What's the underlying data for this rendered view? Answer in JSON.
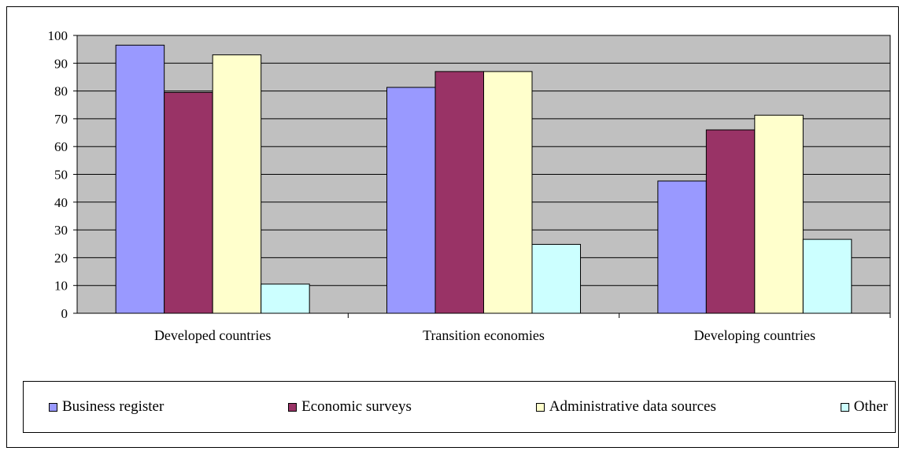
{
  "chart_data": {
    "type": "bar",
    "categories": [
      "Developed countries",
      "Transition economies",
      "Developing countries"
    ],
    "series": [
      {
        "name": "Business register",
        "color": "#9999ff",
        "values": [
          96.5,
          81.3,
          47.6
        ]
      },
      {
        "name": "Economic surveys",
        "color": "#993366",
        "values": [
          79.5,
          87.0,
          66.0
        ]
      },
      {
        "name": "Administrative data sources",
        "color": "#ffffcc",
        "values": [
          93.0,
          87.0,
          71.3
        ]
      },
      {
        "name": "Other",
        "color": "#ccffff",
        "values": [
          10.5,
          24.8,
          26.6
        ]
      }
    ],
    "ylim": [
      0,
      100
    ],
    "yticks": [
      0,
      10,
      20,
      30,
      40,
      50,
      60,
      70,
      80,
      90,
      100
    ],
    "grid": true,
    "plot_background": "#c0c0c0",
    "legend_position": "bottom",
    "title": "",
    "xlabel": "",
    "ylabel": ""
  }
}
